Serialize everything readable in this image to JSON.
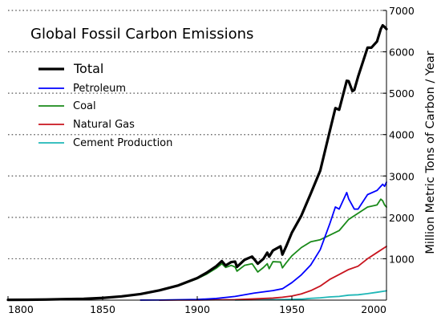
{
  "chart_data": {
    "type": "line",
    "title": "Global Fossil Carbon Emissions",
    "xlabel": "",
    "ylabel": "Million Metric Tons of Carbon / Year",
    "xlim": [
      1800,
      2000
    ],
    "ylim": [
      0,
      7000
    ],
    "x_ticks": [
      1800,
      1850,
      1900,
      1950,
      2000
    ],
    "y_ticks": [
      1000,
      2000,
      3000,
      4000,
      5000,
      6000,
      7000
    ],
    "y_axis_side": "right",
    "grid": "horizontal-dotted",
    "legend_placement": "top-left",
    "series": [
      {
        "name": "Total",
        "color": "#000000",
        "points": [
          [
            1800,
            8
          ],
          [
            1810,
            10
          ],
          [
            1820,
            14
          ],
          [
            1830,
            24
          ],
          [
            1840,
            33
          ],
          [
            1850,
            54
          ],
          [
            1860,
            91
          ],
          [
            1870,
            147
          ],
          [
            1880,
            236
          ],
          [
            1890,
            356
          ],
          [
            1900,
            534
          ],
          [
            1905,
            663
          ],
          [
            1910,
            819
          ],
          [
            1913,
            943
          ],
          [
            1915,
            836
          ],
          [
            1918,
            920
          ],
          [
            1920,
            932
          ],
          [
            1921,
            803
          ],
          [
            1925,
            975
          ],
          [
            1929,
            1053
          ],
          [
            1932,
            881
          ],
          [
            1935,
            1000
          ],
          [
            1937,
            1148
          ],
          [
            1938,
            1050
          ],
          [
            1940,
            1200
          ],
          [
            1944,
            1300
          ],
          [
            1945,
            1100
          ],
          [
            1947,
            1300
          ],
          [
            1950,
            1630
          ],
          [
            1955,
            2040
          ],
          [
            1960,
            2577
          ],
          [
            1965,
            3130
          ],
          [
            1970,
            4076
          ],
          [
            1973,
            4640
          ],
          [
            1975,
            4600
          ],
          [
            1979,
            5300
          ],
          [
            1980,
            5292
          ],
          [
            1982,
            5050
          ],
          [
            1983,
            5080
          ],
          [
            1985,
            5400
          ],
          [
            1990,
            6100
          ],
          [
            1992,
            6100
          ],
          [
            1995,
            6250
          ],
          [
            1997,
            6550
          ],
          [
            1998,
            6640
          ],
          [
            1999,
            6600
          ],
          [
            2000,
            6550
          ]
        ]
      },
      {
        "name": "Petroleum",
        "color": "#0000ff",
        "points": [
          [
            1870,
            1
          ],
          [
            1880,
            3
          ],
          [
            1890,
            9
          ],
          [
            1900,
            16
          ],
          [
            1910,
            40
          ],
          [
            1920,
            90
          ],
          [
            1930,
            170
          ],
          [
            1940,
            230
          ],
          [
            1945,
            275
          ],
          [
            1950,
            423
          ],
          [
            1955,
            610
          ],
          [
            1960,
            850
          ],
          [
            1965,
            1220
          ],
          [
            1970,
            1840
          ],
          [
            1973,
            2250
          ],
          [
            1975,
            2200
          ],
          [
            1979,
            2600
          ],
          [
            1980,
            2450
          ],
          [
            1983,
            2200
          ],
          [
            1985,
            2200
          ],
          [
            1990,
            2550
          ],
          [
            1995,
            2650
          ],
          [
            1998,
            2800
          ],
          [
            1999,
            2750
          ],
          [
            2000,
            2850
          ]
        ]
      },
      {
        "name": "Coal",
        "color": "#1a8a1a",
        "points": [
          [
            1800,
            8
          ],
          [
            1810,
            10
          ],
          [
            1820,
            14
          ],
          [
            1830,
            24
          ],
          [
            1840,
            33
          ],
          [
            1850,
            54
          ],
          [
            1860,
            91
          ],
          [
            1870,
            146
          ],
          [
            1880,
            233
          ],
          [
            1890,
            347
          ],
          [
            1900,
            517
          ],
          [
            1905,
            630
          ],
          [
            1910,
            770
          ],
          [
            1913,
            880
          ],
          [
            1915,
            790
          ],
          [
            1918,
            840
          ],
          [
            1920,
            800
          ],
          [
            1921,
            700
          ],
          [
            1925,
            840
          ],
          [
            1929,
            880
          ],
          [
            1932,
            680
          ],
          [
            1935,
            790
          ],
          [
            1937,
            880
          ],
          [
            1938,
            760
          ],
          [
            1940,
            930
          ],
          [
            1944,
            920
          ],
          [
            1945,
            780
          ],
          [
            1947,
            900
          ],
          [
            1950,
            1070
          ],
          [
            1955,
            1270
          ],
          [
            1960,
            1410
          ],
          [
            1965,
            1460
          ],
          [
            1970,
            1570
          ],
          [
            1975,
            1680
          ],
          [
            1980,
            1950
          ],
          [
            1985,
            2100
          ],
          [
            1990,
            2250
          ],
          [
            1995,
            2300
          ],
          [
            1997,
            2440
          ],
          [
            1998,
            2400
          ],
          [
            1999,
            2300
          ],
          [
            2000,
            2250
          ]
        ]
      },
      {
        "name": "Natural Gas",
        "color": "#c8141e",
        "points": [
          [
            1880,
            1
          ],
          [
            1890,
            2
          ],
          [
            1900,
            4
          ],
          [
            1910,
            8
          ],
          [
            1920,
            12
          ],
          [
            1930,
            30
          ],
          [
            1940,
            50
          ],
          [
            1945,
            70
          ],
          [
            1950,
            100
          ],
          [
            1955,
            150
          ],
          [
            1960,
            230
          ],
          [
            1965,
            340
          ],
          [
            1970,
            500
          ],
          [
            1975,
            620
          ],
          [
            1980,
            740
          ],
          [
            1985,
            820
          ],
          [
            1990,
            1000
          ],
          [
            1995,
            1150
          ],
          [
            2000,
            1300
          ]
        ]
      },
      {
        "name": "Cement Production",
        "color": "#1fb7b7",
        "points": [
          [
            1920,
            4
          ],
          [
            1930,
            8
          ],
          [
            1940,
            11
          ],
          [
            1950,
            18
          ],
          [
            1955,
            25
          ],
          [
            1960,
            43
          ],
          [
            1965,
            55
          ],
          [
            1970,
            78
          ],
          [
            1975,
            90
          ],
          [
            1980,
            120
          ],
          [
            1985,
            130
          ],
          [
            1990,
            157
          ],
          [
            1995,
            190
          ],
          [
            2000,
            225
          ]
        ]
      }
    ]
  }
}
